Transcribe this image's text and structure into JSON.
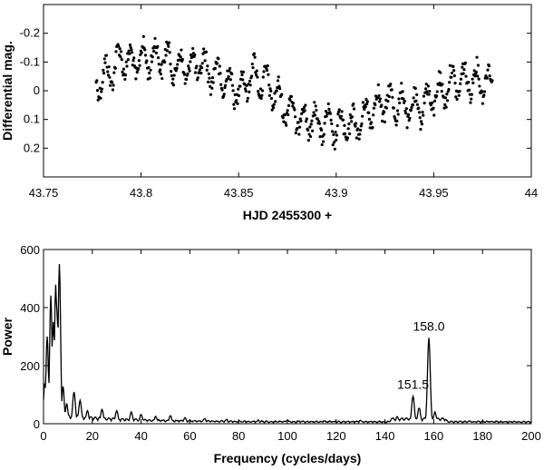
{
  "chart_data": [
    {
      "type": "scatter",
      "xlabel": "HJD 2455300 +",
      "ylabel": "Differential mag.",
      "xlim": [
        43.75,
        44.0
      ],
      "ylim": [
        0.3,
        -0.3
      ],
      "y_inverted": true,
      "grid": false,
      "x_ticks": [
        "43.75",
        "43.8",
        "43.85",
        "43.9",
        "43.95",
        "44"
      ],
      "y_ticks": [
        "-0.2",
        "-0.1",
        "0",
        "0.1",
        "0.2"
      ],
      "trend_points": [
        [
          43.777,
          -0.03
        ],
        [
          43.785,
          -0.07
        ],
        [
          43.79,
          -0.12
        ],
        [
          43.795,
          -0.09
        ],
        [
          43.8,
          -0.11
        ],
        [
          43.81,
          -0.12
        ],
        [
          43.82,
          -0.08
        ],
        [
          43.83,
          -0.09
        ],
        [
          43.84,
          -0.05
        ],
        [
          43.85,
          0.0
        ],
        [
          43.857,
          -0.06
        ],
        [
          43.865,
          -0.02
        ],
        [
          43.872,
          0.04
        ],
        [
          43.88,
          0.09
        ],
        [
          43.89,
          0.11
        ],
        [
          43.9,
          0.13
        ],
        [
          43.91,
          0.12
        ],
        [
          43.92,
          0.05
        ],
        [
          43.93,
          0.04
        ],
        [
          43.94,
          0.07
        ],
        [
          43.95,
          0.02
        ],
        [
          43.96,
          -0.03
        ],
        [
          43.97,
          -0.04
        ],
        [
          43.98,
          -0.03
        ]
      ],
      "n_points": 620,
      "scatter_amplitude": 0.065,
      "marker": "black-dot"
    },
    {
      "type": "line",
      "xlabel": "Frequency (cycles/days)",
      "ylabel": "Power",
      "xlim": [
        0,
        200
      ],
      "ylim": [
        0,
        600
      ],
      "grid": false,
      "x_ticks": [
        "0",
        "20",
        "40",
        "60",
        "80",
        "100",
        "120",
        "140",
        "160",
        "180",
        "200"
      ],
      "y_ticks": [
        "0",
        "200",
        "400",
        "600"
      ],
      "line_color": "#000000",
      "peaks": [
        {
          "x": 0.5,
          "y": 140
        },
        {
          "x": 1.5,
          "y": 300
        },
        {
          "x": 3.0,
          "y": 440
        },
        {
          "x": 4.0,
          "y": 350
        },
        {
          "x": 5.0,
          "y": 480
        },
        {
          "x": 5.5,
          "y": 390
        },
        {
          "x": 6.5,
          "y": 550
        },
        {
          "x": 8.0,
          "y": 130
        },
        {
          "x": 9.5,
          "y": 70
        },
        {
          "x": 12.5,
          "y": 110
        },
        {
          "x": 15.0,
          "y": 80
        },
        {
          "x": 18.0,
          "y": 45
        },
        {
          "x": 24.0,
          "y": 50
        },
        {
          "x": 30.0,
          "y": 45
        },
        {
          "x": 36.0,
          "y": 40
        },
        {
          "x": 40.0,
          "y": 32
        },
        {
          "x": 46.0,
          "y": 25
        },
        {
          "x": 52.0,
          "y": 28
        },
        {
          "x": 58.0,
          "y": 22
        },
        {
          "x": 66.0,
          "y": 18
        },
        {
          "x": 75.0,
          "y": 15
        },
        {
          "x": 88.0,
          "y": 12
        },
        {
          "x": 100.0,
          "y": 12
        },
        {
          "x": 115.0,
          "y": 10
        },
        {
          "x": 130.0,
          "y": 12
        },
        {
          "x": 145.0,
          "y": 25
        },
        {
          "x": 151.5,
          "y": 95
        },
        {
          "x": 154.0,
          "y": 55
        },
        {
          "x": 158.0,
          "y": 295
        },
        {
          "x": 160.5,
          "y": 40
        },
        {
          "x": 165.0,
          "y": 15
        },
        {
          "x": 175.0,
          "y": 8
        },
        {
          "x": 185.0,
          "y": 6
        },
        {
          "x": 195.0,
          "y": 5
        }
      ],
      "annotations": [
        {
          "text": "158.0",
          "x": 158.0,
          "y": 295
        },
        {
          "text": "151.5",
          "x": 151.5,
          "y": 95
        }
      ]
    }
  ]
}
